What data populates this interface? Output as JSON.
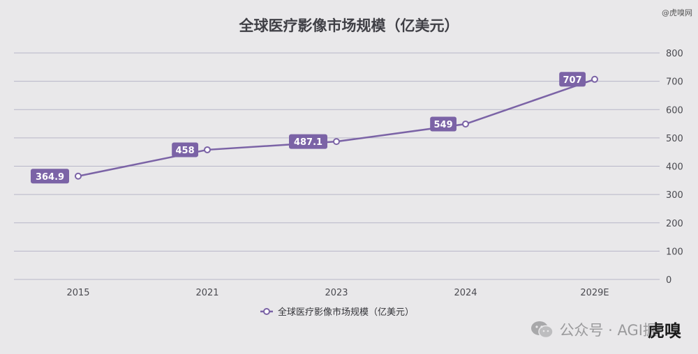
{
  "chart_data": {
    "type": "line",
    "title": "全球医疗影像市场规模（亿美元）",
    "categories": [
      "2015",
      "2021",
      "2023",
      "2024",
      "2029E"
    ],
    "series": [
      {
        "name": "全球医疗影像市场规模（亿美元）",
        "values": [
          364.9,
          458,
          487.1,
          549,
          707
        ],
        "labels": [
          "364.9",
          "458",
          "487.1",
          "549",
          "707"
        ]
      }
    ],
    "ylim": [
      0,
      800
    ],
    "yticks": [
      0,
      100,
      200,
      300,
      400,
      500,
      600,
      700,
      800
    ],
    "y_axis_side": "right",
    "grid": true,
    "legend": "bottom-center",
    "colors": {
      "line": "#7b63a6",
      "label_bg": "#7b63a6",
      "grid": "#b8b6c8",
      "background": "#e9e8ea"
    }
  },
  "watermarks": {
    "top_right": "@虎嗅网",
    "bottom_text": "公众号 · AGI掘",
    "bottom_logo": "虎嗅",
    "bottom_icon": "wechat-icon"
  }
}
